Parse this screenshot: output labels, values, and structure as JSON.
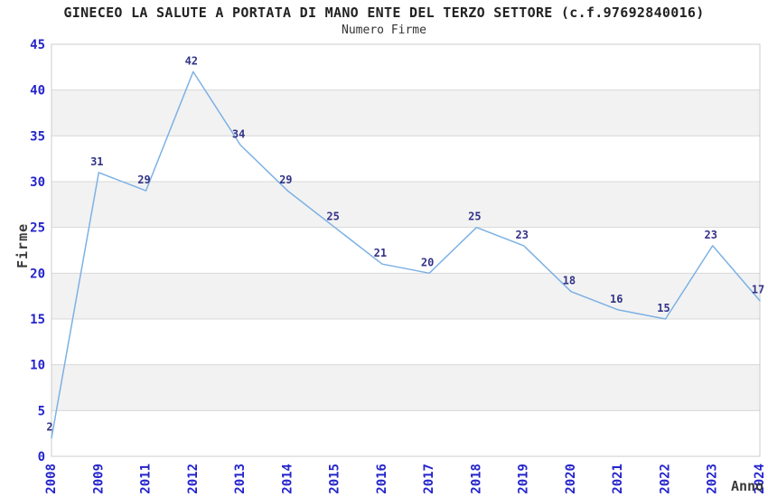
{
  "chart_data": {
    "type": "line",
    "title": "GINECEO LA SALUTE A PORTATA DI MANO ENTE DEL TERZO SETTORE (c.f.97692840016)",
    "subtitle": "Numero Firme",
    "xlabel": "Anno",
    "ylabel": "Firme",
    "categories": [
      "2008",
      "2009",
      "2011",
      "2012",
      "2013",
      "2014",
      "2015",
      "2016",
      "2017",
      "2018",
      "2019",
      "2020",
      "2021",
      "2022",
      "2023",
      "2024"
    ],
    "values": [
      2,
      31,
      29,
      42,
      34,
      29,
      25,
      21,
      20,
      25,
      23,
      18,
      16,
      15,
      23,
      17
    ],
    "ylim": [
      0,
      45
    ],
    "ytick_step": 5,
    "ytick_labels": [
      "0",
      "5",
      "10",
      "15",
      "20",
      "25",
      "30",
      "35",
      "40",
      "45"
    ],
    "grid": "horizontal-lines-with-alternating-bands",
    "legend_position": "none",
    "colors": {
      "line": "#7CB1E4",
      "tick_label": "#2424CC",
      "value_label": "#333388",
      "band_fill": "#F2F2F2",
      "gridline": "#D8D8D8",
      "plot_border": "#CCCCCC",
      "title_text": "#222222",
      "axis_label_text": "#3A3A3A",
      "background": "#FFFFFF"
    }
  }
}
